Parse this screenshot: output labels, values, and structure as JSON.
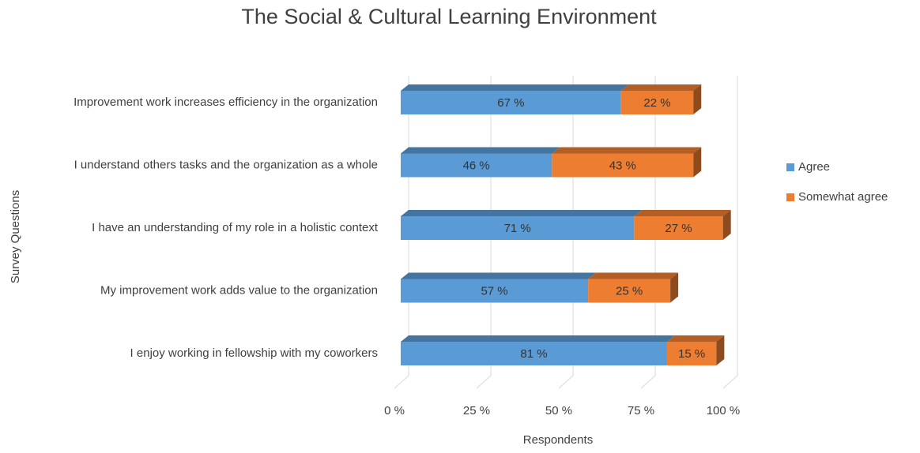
{
  "chart_data": {
    "type": "bar",
    "orientation": "horizontal",
    "stacked": true,
    "title": "The Social & Cultural Learning Environment",
    "x_label": "Respondents",
    "y_label": "Survey Questions",
    "categories": [
      "Improvement work increases efficiency in the organization",
      "I understand others tasks and the organization as a whole",
      "I have an understanding of my role in a holistic context",
      "My improvement work adds value to the organization",
      "I enjoy working in fellowship with my coworkers"
    ],
    "series": [
      {
        "name": "Agree",
        "color": "#5b9bd5",
        "values": [
          67,
          46,
          71,
          57,
          81
        ],
        "value_labels": [
          "67 %",
          "46 %",
          "71 %",
          "57 %",
          "81 %"
        ]
      },
      {
        "name": "Somewhat agree",
        "color": "#ed7d31",
        "values": [
          22,
          43,
          27,
          25,
          15
        ],
        "value_labels": [
          "22 %",
          "43 %",
          "27 %",
          "25 %",
          "15 %"
        ]
      }
    ],
    "xlim": [
      0,
      100
    ],
    "xticks": [
      {
        "value": 0,
        "label": "0 %"
      },
      {
        "value": 25,
        "label": "25 %"
      },
      {
        "value": 50,
        "label": "50 %"
      },
      {
        "value": 75,
        "label": "75 %"
      },
      {
        "value": 100,
        "label": "100 %"
      }
    ],
    "grid": true,
    "legend": "right"
  }
}
